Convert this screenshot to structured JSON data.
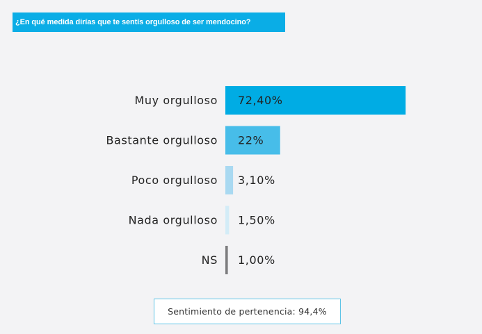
{
  "question": "¿En qué medida dirías que te sentís orgulloso de ser mendocino?",
  "chart_data": {
    "type": "bar",
    "orientation": "horizontal",
    "categories": [
      "Muy orgulloso",
      "Bastante orgulloso",
      "Poco orgulloso",
      "Nada orgulloso",
      "NS"
    ],
    "values": [
      72.4,
      22,
      3.1,
      1.5,
      1.0
    ],
    "value_labels": [
      "72,40%",
      "22%",
      "3,10%",
      "1,50%",
      "1,00%"
    ],
    "colors": [
      "#00ace4",
      "#47bde9",
      "#a9d9f1",
      "#d3ecf7",
      "#7b7b7d"
    ],
    "label_color": "#222222",
    "grid": false,
    "legend": "none"
  },
  "footer": {
    "text": "Sentimiento de pertenencia: 94,4%"
  }
}
